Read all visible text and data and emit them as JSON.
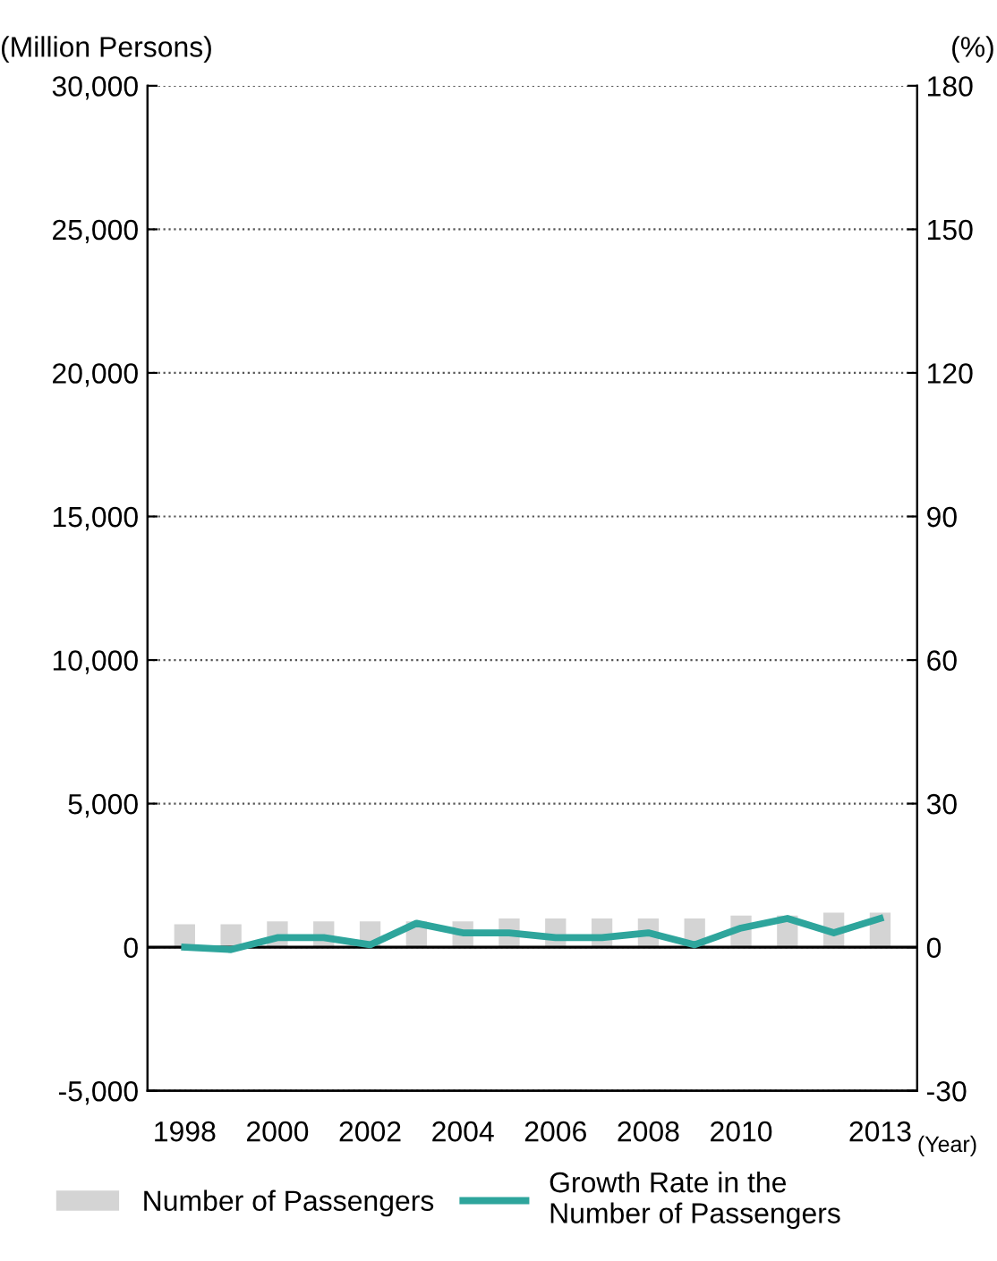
{
  "chart_data": {
    "type": "bar",
    "categories": [
      "1998",
      null,
      "2000",
      null,
      "2002",
      null,
      "2004",
      null,
      "2006",
      null,
      "2008",
      null,
      "2010",
      null,
      null,
      "2013"
    ],
    "xlabel": "(Year)",
    "ylabel": "(Million Persons)",
    "y2label": "(%)",
    "series": [
      {
        "name": "Number of Passengers",
        "color": "#d4d4d4",
        "values": [
          800,
          800,
          900,
          900,
          900,
          900,
          900,
          1000,
          1000,
          1000,
          1000,
          1000,
          1100,
          1100,
          1200,
          1200
        ]
      },
      {
        "name": "Growth Rate in the\nNumber of Passengers",
        "type": "line",
        "axis": "y2",
        "color": "#2ea59c",
        "values": [
          0,
          -0.5,
          2,
          2,
          0.5,
          5,
          3,
          3,
          2,
          2,
          3,
          0.5,
          4,
          6,
          3,
          6
        ]
      }
    ],
    "ylim": [
      -5000,
      30000
    ],
    "yticks": [
      {
        "value": -5000,
        "label": "-5,000"
      },
      0,
      {
        "value": 5000,
        "label": "5,000"
      },
      {
        "value": 10000,
        "label": "10,000"
      },
      {
        "value": 15000,
        "label": "15,000"
      },
      {
        "value": 20000,
        "label": "20,000"
      },
      {
        "value": 25000,
        "label": "25,000"
      },
      {
        "value": 30000,
        "label": "30,000"
      }
    ],
    "y2lim": [
      -30,
      180
    ],
    "y2ticks": [
      -30,
      0,
      30,
      60,
      90,
      120,
      150,
      180
    ],
    "ref_lines": [
      {
        "axis": "y",
        "value": 0,
        "color": "#000000"
      }
    ],
    "grid": "y",
    "legend": "bottom",
    "line_style": "solid",
    "marker": "none"
  }
}
